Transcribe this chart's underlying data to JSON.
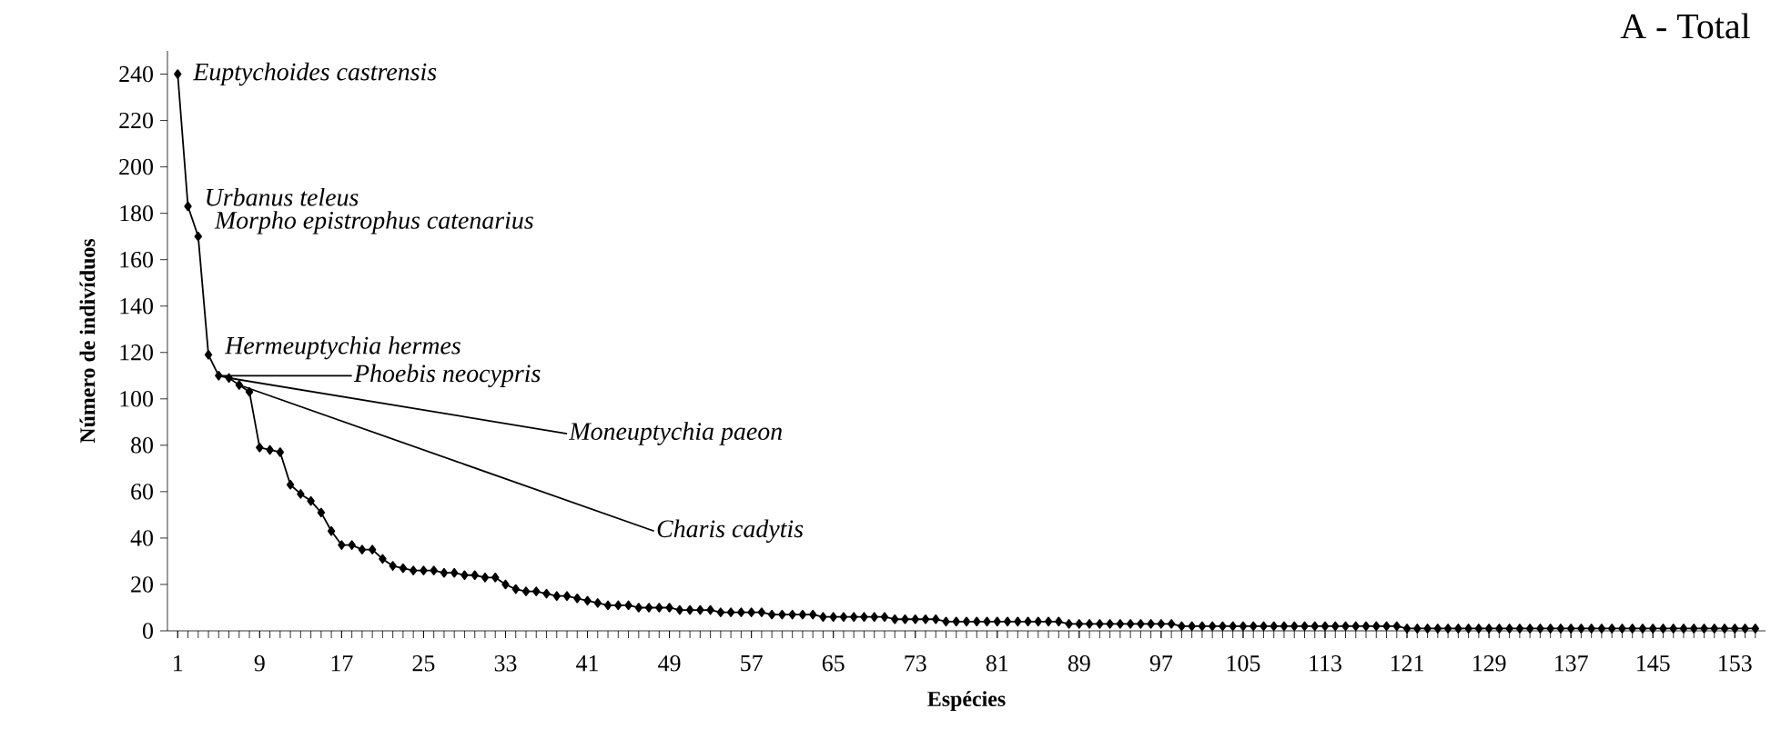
{
  "chart_data": {
    "type": "line",
    "title": "A - Total",
    "xlabel": "Espécies",
    "ylabel": "Número de indivíduos",
    "x": [
      1,
      2,
      3,
      4,
      5,
      6,
      7,
      8,
      9,
      10,
      11,
      12,
      13,
      14,
      15,
      16,
      17,
      18,
      19,
      20,
      21,
      22,
      23,
      24,
      25,
      26,
      27,
      28,
      29,
      30,
      31,
      32,
      33,
      34,
      35,
      36,
      37,
      38,
      39,
      40,
      41,
      42,
      43,
      44,
      45,
      46,
      47,
      48,
      49,
      50,
      51,
      52,
      53,
      54,
      55,
      56,
      57,
      58,
      59,
      60,
      61,
      62,
      63,
      64,
      65,
      66,
      67,
      68,
      69,
      70,
      71,
      72,
      73,
      74,
      75,
      76,
      77,
      78,
      79,
      80,
      81,
      82,
      83,
      84,
      85,
      86,
      87,
      88,
      89,
      90,
      91,
      92,
      93,
      94,
      95,
      96,
      97,
      98,
      99,
      100,
      101,
      102,
      103,
      104,
      105,
      106,
      107,
      108,
      109,
      110,
      111,
      112,
      113,
      114,
      115,
      116,
      117,
      118,
      119,
      120,
      121,
      122,
      123,
      124,
      125,
      126,
      127,
      128,
      129,
      130,
      131,
      132,
      133,
      134,
      135,
      136,
      137,
      138,
      139,
      140,
      141,
      142,
      143,
      144,
      145,
      146,
      147,
      148,
      149,
      150,
      151,
      152,
      153,
      154,
      155
    ],
    "series": [
      {
        "color": "#000000",
        "values": [
          240,
          183,
          170,
          119,
          110,
          109,
          106,
          103,
          79,
          78,
          77,
          63,
          59,
          56,
          51,
          43,
          37,
          37,
          35,
          35,
          31,
          28,
          27,
          26,
          26,
          26,
          25,
          25,
          24,
          24,
          23,
          23,
          20,
          18,
          17,
          17,
          16,
          15,
          15,
          14,
          13,
          12,
          11,
          11,
          11,
          10,
          10,
          10,
          10,
          9,
          9,
          9,
          9,
          8,
          8,
          8,
          8,
          8,
          7,
          7,
          7,
          7,
          7,
          6,
          6,
          6,
          6,
          6,
          6,
          6,
          5,
          5,
          5,
          5,
          5,
          4,
          4,
          4,
          4,
          4,
          4,
          4,
          4,
          4,
          4,
          4,
          4,
          3,
          3,
          3,
          3,
          3,
          3,
          3,
          3,
          3,
          3,
          3,
          2,
          2,
          2,
          2,
          2,
          2,
          2,
          2,
          2,
          2,
          2,
          2,
          2,
          2,
          2,
          2,
          2,
          2,
          2,
          2,
          2,
          2,
          1,
          1,
          1,
          1,
          1,
          1,
          1,
          1,
          1,
          1,
          1,
          1,
          1,
          1,
          1,
          1,
          1,
          1,
          1,
          1,
          1,
          1,
          1,
          1,
          1,
          1,
          1,
          1,
          1,
          1,
          1,
          1,
          1,
          1,
          1
        ]
      }
    ],
    "xlim": [
      0,
      156
    ],
    "ylim": [
      0,
      250
    ],
    "xticks": [
      1,
      9,
      17,
      25,
      33,
      41,
      49,
      57,
      65,
      73,
      81,
      89,
      97,
      105,
      113,
      121,
      129,
      137,
      145,
      153
    ],
    "yticks": [
      0,
      20,
      40,
      60,
      80,
      100,
      120,
      140,
      160,
      180,
      200,
      220,
      240
    ],
    "marker": "diamond",
    "line_style": "solid",
    "annotations": [
      {
        "text": "Euptychoides castrensis",
        "x": 1,
        "y": 240
      },
      {
        "text": "Urbanus teleus",
        "x": 2,
        "y": 183
      },
      {
        "text": "Morpho epistrophus catenarius",
        "x": 3,
        "y": 170
      },
      {
        "text": "Hermeuptychia hermes",
        "x": 4,
        "y": 119
      },
      {
        "text": "Phoebis neocypris",
        "x": 5,
        "y": 110
      },
      {
        "text": "Moneuptychia paeon",
        "x": 6,
        "y": 109
      },
      {
        "text": "Charis cadytis",
        "x": 7,
        "y": 106
      }
    ]
  }
}
